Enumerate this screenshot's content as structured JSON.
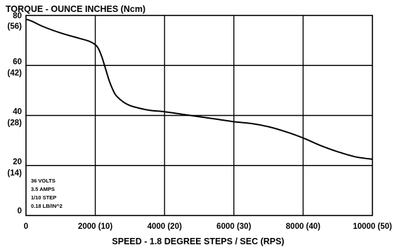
{
  "chart_data": {
    "type": "line",
    "title": "TORQUE - OUNCE INCHES (Ncm)",
    "xlabel": "SPEED - 1.8 DEGREE STEPS / SEC (RPS)",
    "ylabel": "",
    "xlim": [
      0,
      10000
    ],
    "ylim": [
      0,
      80
    ],
    "grid": true,
    "x_ticks": [
      {
        "value": 0,
        "label": "0"
      },
      {
        "value": 2000,
        "label": "2000 (10)"
      },
      {
        "value": 4000,
        "label": "4000 (20)"
      },
      {
        "value": 6000,
        "label": "6000 (30)"
      },
      {
        "value": 8000,
        "label": "8000 (40)"
      },
      {
        "value": 10000,
        "label": "10000 (50)"
      }
    ],
    "y_ticks": [
      {
        "value": 80,
        "label": "80",
        "sublabel": "(56)"
      },
      {
        "value": 60,
        "label": "60",
        "sublabel": "(42)"
      },
      {
        "value": 40,
        "label": "40",
        "sublabel": "(28)"
      },
      {
        "value": 20,
        "label": "20",
        "sublabel": "(14)"
      },
      {
        "value": 0,
        "label": "0",
        "sublabel": ""
      }
    ],
    "series": [
      {
        "x": [
          0,
          200,
          500,
          1000,
          1500,
          1800,
          2000,
          2100,
          2200,
          2300,
          2400,
          2500,
          2600,
          2800,
          3000,
          3300,
          3600,
          4000,
          4500,
          5000,
          5500,
          6000,
          6500,
          7000,
          7500,
          8000,
          8500,
          9000,
          9500,
          10000
        ],
        "values": [
          78.5,
          77.5,
          75.5,
          73,
          71,
          69.8,
          68.3,
          66.5,
          63,
          58.5,
          54,
          50.5,
          48,
          45.5,
          44,
          42.8,
          42,
          41.5,
          40.5,
          39.5,
          38.5,
          37.5,
          36.8,
          35.5,
          33.5,
          31,
          28,
          25.5,
          23.5,
          22.5
        ]
      }
    ],
    "annotation": [
      "36 VOLTS",
      "3.5 AMPS",
      "1/10 STEP",
      "0.18 LB/IN^2"
    ]
  }
}
